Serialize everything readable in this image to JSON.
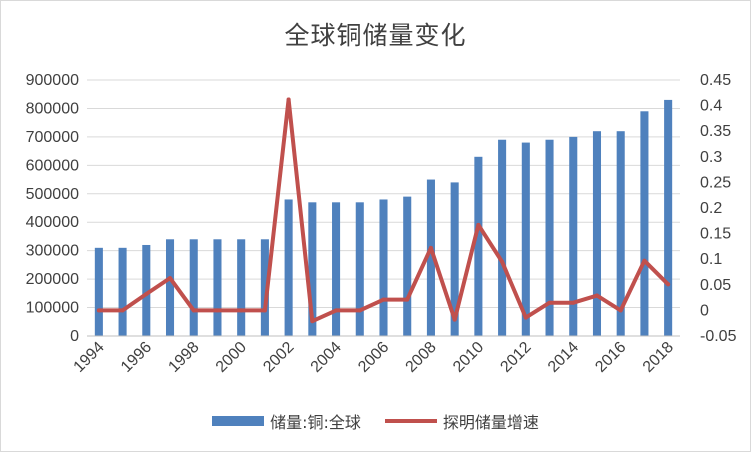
{
  "chart_data": {
    "type": "bar",
    "title": "全球铜储量变化",
    "categories": [
      "1994",
      "1995",
      "1996",
      "1997",
      "1998",
      "1999",
      "2000",
      "2001",
      "2002",
      "2003",
      "2004",
      "2005",
      "2006",
      "2007",
      "2008",
      "2009",
      "2010",
      "2011",
      "2012",
      "2013",
      "2014",
      "2015",
      "2016",
      "2017",
      "2018"
    ],
    "x_tick_labels": [
      "1994",
      "1996",
      "1998",
      "2000",
      "2002",
      "2004",
      "2006",
      "2008",
      "2010",
      "2012",
      "2014",
      "2016",
      "2018"
    ],
    "series": [
      {
        "name": "储量:铜:全球",
        "type": "bar",
        "axis": "left",
        "color": "#4F81BD",
        "values": [
          310000,
          310000,
          320000,
          340000,
          340000,
          340000,
          340000,
          340000,
          480000,
          470000,
          470000,
          470000,
          480000,
          490000,
          550000,
          540000,
          630000,
          690000,
          680000,
          690000,
          700000,
          720000,
          720000,
          790000,
          830000
        ]
      },
      {
        "name": "探明储量增速",
        "type": "line",
        "axis": "right",
        "color": "#C0504D",
        "values": [
          0.0,
          0.0,
          0.032,
          0.063,
          0.0,
          0.0,
          0.0,
          0.0,
          0.412,
          -0.021,
          0.0,
          0.0,
          0.021,
          0.021,
          0.122,
          -0.018,
          0.167,
          0.095,
          -0.014,
          0.015,
          0.015,
          0.029,
          0.0,
          0.097,
          0.051
        ]
      }
    ],
    "y_left": {
      "ylim": [
        0,
        900000
      ],
      "ticks": [
        "0",
        "100000",
        "200000",
        "300000",
        "400000",
        "500000",
        "600000",
        "700000",
        "800000",
        "900000"
      ]
    },
    "y_right": {
      "ylim": [
        -0.05,
        0.45
      ],
      "ticks": [
        "-0.05",
        "0",
        "0.05",
        "0.1",
        "0.15",
        "0.2",
        "0.25",
        "0.3",
        "0.35",
        "0.4",
        "0.45"
      ]
    },
    "grid": true,
    "legend_position": "bottom"
  }
}
